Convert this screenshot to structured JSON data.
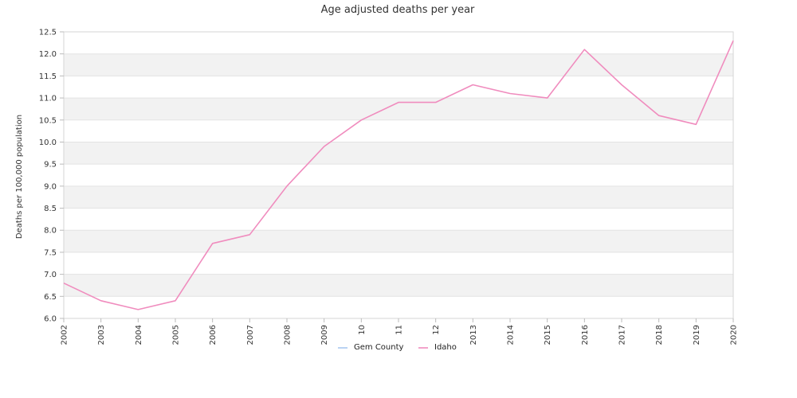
{
  "chart_data": {
    "type": "line",
    "title": "Age adjusted deaths per year",
    "xlabel": "",
    "ylabel": "Deaths per 100,000 population",
    "x_tick_labels": [
      "2002",
      "2003",
      "2004",
      "2005",
      "2006",
      "2007",
      "2008",
      "2009",
      "10",
      "11",
      "12",
      "2013",
      "2014",
      "2015",
      "2016",
      "2017",
      "2018",
      "2019",
      "2020"
    ],
    "ylim": [
      6.0,
      12.5
    ],
    "y_ticks": [
      "6.0",
      "6.5",
      "7.0",
      "7.5",
      "8.0",
      "8.5",
      "9.0",
      "9.5",
      "10.0",
      "10.5",
      "11.0",
      "11.5",
      "12.0",
      "12.5"
    ],
    "grid": "alternating horizontal bands",
    "legend_position": "bottom-center",
    "series": [
      {
        "name": "Gem County",
        "color": "#a8c8f0",
        "values": []
      },
      {
        "name": "Idaho",
        "color": "#f08cbe",
        "values": [
          6.8,
          6.4,
          6.2,
          6.4,
          7.7,
          7.9,
          9.0,
          9.9,
          10.5,
          10.9,
          10.9,
          11.3,
          11.1,
          11.0,
          12.1,
          11.3,
          10.6,
          10.4,
          12.3
        ]
      }
    ]
  }
}
